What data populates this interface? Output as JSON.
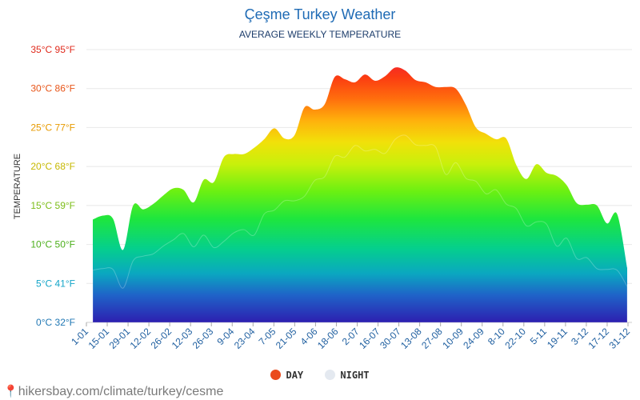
{
  "header": {
    "title": "Çeşme Turkey Weather",
    "subtitle": "AVERAGE WEEKLY TEMPERATURE"
  },
  "legend": {
    "day_label": "DAY",
    "night_label": "NIGHT",
    "day_color": "#ea4a1c",
    "night_color": "#e4e9f0"
  },
  "footer": {
    "source": "hikersbay.com/climate/turkey/cesme"
  },
  "chart_data": {
    "type": "area",
    "ylabel": "TEMPERATURE",
    "y_ticks": [
      {
        "value": 0,
        "label": "0°C 32°F",
        "color": "#1f77b4"
      },
      {
        "value": 5,
        "label": "5°C 41°F",
        "color": "#14a5c8"
      },
      {
        "value": 10,
        "label": "10°C 50°F",
        "color": "#4caf1c"
      },
      {
        "value": 15,
        "label": "15°C 59°F",
        "color": "#7cbd18"
      },
      {
        "value": 20,
        "label": "20°C 68°F",
        "color": "#c6b800"
      },
      {
        "value": 25,
        "label": "25°C 77°F",
        "color": "#e79a00"
      },
      {
        "value": 30,
        "label": "30°C 86°F",
        "color": "#e8561a"
      },
      {
        "value": 35,
        "label": "35°C 95°F",
        "color": "#e02a1c"
      }
    ],
    "ylim": [
      0,
      35
    ],
    "x_tick_labels": [
      "1-01",
      "15-01",
      "29-01",
      "12-02",
      "26-02",
      "12-03",
      "26-03",
      "9-04",
      "23-04",
      "7-05",
      "21-05",
      "4-06",
      "18-06",
      "2-07",
      "16-07",
      "30-07",
      "13-08",
      "27-08",
      "10-09",
      "24-09",
      "8-10",
      "22-10",
      "5-11",
      "19-11",
      "3-12",
      "17-12",
      "31-12"
    ],
    "series": [
      {
        "name": "DAY",
        "values": [
          13.2,
          13.7,
          13.3,
          9.3,
          15.0,
          14.5,
          15.2,
          16.3,
          17.2,
          17.0,
          15.4,
          18.3,
          18.0,
          21.2,
          21.6,
          21.6,
          22.4,
          23.5,
          24.9,
          23.6,
          24.0,
          27.6,
          27.3,
          28.0,
          31.5,
          31.2,
          30.8,
          31.8,
          31.0,
          31.6,
          32.7,
          32.3,
          31.1,
          30.8,
          30.2,
          30.2,
          30.0,
          27.9,
          25.0,
          24.2,
          23.5,
          23.6,
          20.2,
          18.4,
          20.3,
          19.2,
          18.8,
          17.6,
          15.3,
          15.1,
          15.0,
          12.7,
          13.9,
          7.0
        ]
      },
      {
        "name": "NIGHT",
        "values": [
          6.7,
          6.9,
          6.8,
          4.4,
          7.9,
          8.5,
          8.8,
          9.8,
          10.6,
          11.4,
          9.7,
          11.2,
          9.6,
          10.4,
          11.5,
          11.9,
          11.2,
          13.9,
          14.4,
          15.6,
          15.6,
          16.2,
          18.2,
          18.7,
          21.3,
          21.2,
          22.7,
          22.0,
          22.2,
          21.7,
          23.5,
          24.0,
          22.8,
          22.7,
          22.5,
          19.0,
          20.5,
          18.5,
          18.1,
          16.5,
          17.0,
          15.2,
          14.6,
          12.4,
          12.9,
          12.6,
          9.8,
          10.8,
          8.2,
          8.3,
          6.9,
          6.8,
          6.7,
          4.6
        ]
      }
    ]
  }
}
